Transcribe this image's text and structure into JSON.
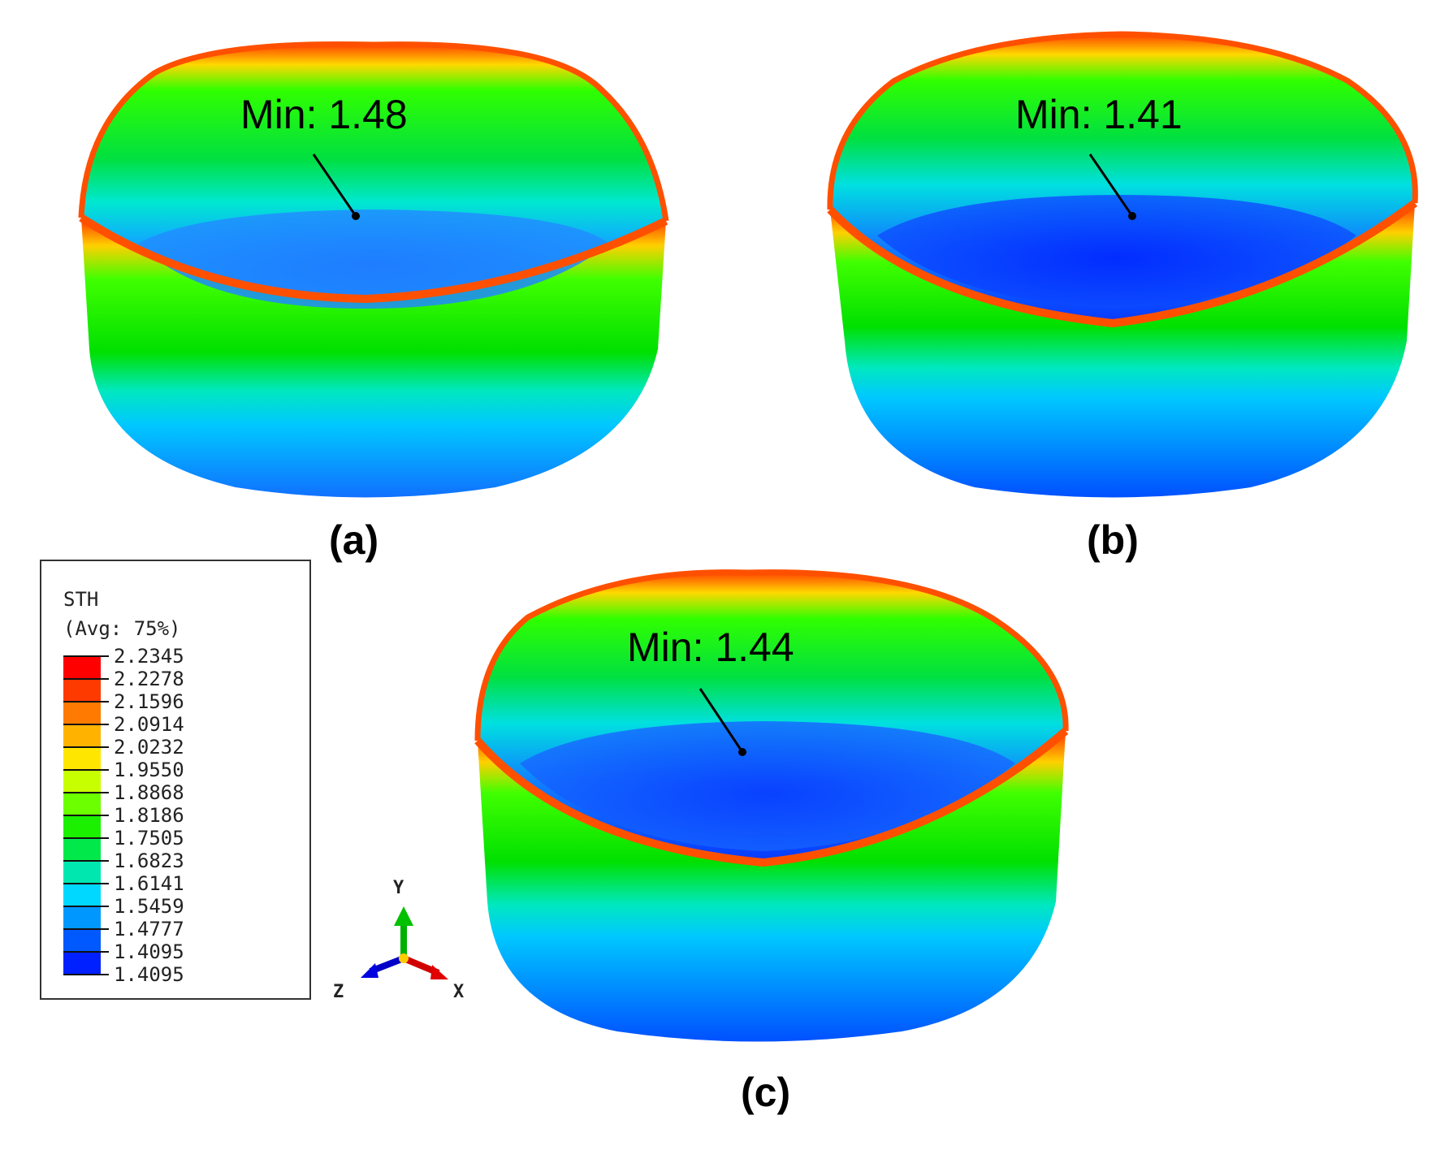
{
  "panels": [
    {
      "label": "(a)",
      "min_label": "Min: 1.48"
    },
    {
      "label": "(b)",
      "min_label": "Min: 1.41"
    },
    {
      "label": "(c)",
      "min_label": "Min: 1.44"
    }
  ],
  "legend": {
    "variable": "STH",
    "averaging": "(Avg: 75%)",
    "values": [
      "2.2345",
      "2.2278",
      "2.1596",
      "2.0914",
      "2.0232",
      "1.9550",
      "1.8868",
      "1.8186",
      "1.7505",
      "1.6823",
      "1.6141",
      "1.5459",
      "1.4777",
      "1.4095",
      "1.4095"
    ],
    "colors": [
      "#ff0000",
      "#ff3a00",
      "#ff7a00",
      "#ffb300",
      "#ffe600",
      "#c8ff00",
      "#6cff00",
      "#1bf000",
      "#00e84a",
      "#00e8b0",
      "#00d8ff",
      "#0098ff",
      "#0058ff",
      "#0020ff",
      "#0000ee"
    ]
  },
  "triad": {
    "y": "Y",
    "z": "Z",
    "x": "X"
  },
  "colors": {
    "high": "#ff0000",
    "mid": "#00e000",
    "low": "#0030ff"
  }
}
